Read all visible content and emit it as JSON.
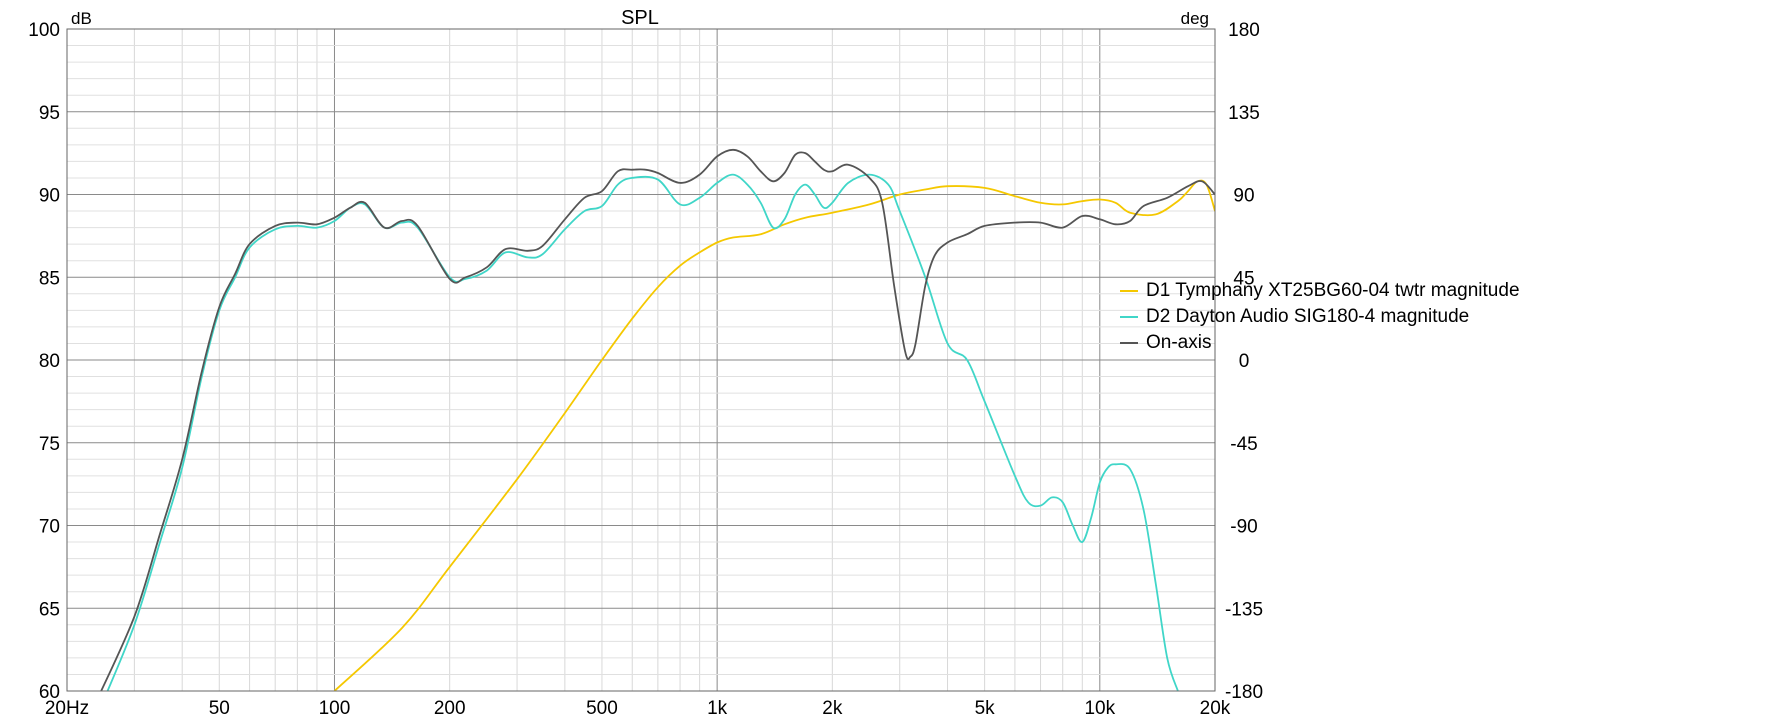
{
  "chart_data": {
    "type": "line",
    "title": "SPL",
    "left_unit": "dB",
    "right_unit": "deg",
    "x_scale": "log",
    "xlim": [
      20,
      20000
    ],
    "ylim": [
      60,
      100
    ],
    "y2lim": [
      -180,
      180
    ],
    "grid": true,
    "legend_position": "right",
    "x_ticks": [
      {
        "value": 20,
        "label": "20Hz"
      },
      {
        "value": 50,
        "label": "50"
      },
      {
        "value": 100,
        "label": "100"
      },
      {
        "value": 200,
        "label": "200"
      },
      {
        "value": 500,
        "label": "500"
      },
      {
        "value": 1000,
        "label": "1k"
      },
      {
        "value": 2000,
        "label": "2k"
      },
      {
        "value": 5000,
        "label": "5k"
      },
      {
        "value": 10000,
        "label": "10k"
      },
      {
        "value": 20000,
        "label": "20k"
      }
    ],
    "y_ticks": [
      100,
      95,
      90,
      85,
      80,
      75,
      70,
      65,
      60
    ],
    "y2_ticks": [
      180,
      135,
      90,
      45,
      0,
      -45,
      -90,
      -135,
      -180
    ],
    "series": [
      {
        "name": "D1 Tymphany XT25BG60-04 twtr magnitude",
        "color": "#f5c800",
        "points": [
          [
            100,
            60.0
          ],
          [
            150,
            63.8
          ],
          [
            200,
            67.5
          ],
          [
            300,
            72.8
          ],
          [
            400,
            76.8
          ],
          [
            500,
            80.0
          ],
          [
            600,
            82.5
          ],
          [
            700,
            84.4
          ],
          [
            800,
            85.7
          ],
          [
            900,
            86.5
          ],
          [
            1000,
            87.1
          ],
          [
            1100,
            87.4
          ],
          [
            1300,
            87.6
          ],
          [
            1500,
            88.2
          ],
          [
            1700,
            88.6
          ],
          [
            2000,
            88.9
          ],
          [
            2500,
            89.4
          ],
          [
            3000,
            90.0
          ],
          [
            3500,
            90.3
          ],
          [
            4000,
            90.5
          ],
          [
            5000,
            90.4
          ],
          [
            6000,
            89.9
          ],
          [
            7000,
            89.5
          ],
          [
            8000,
            89.4
          ],
          [
            9000,
            89.6
          ],
          [
            10000,
            89.7
          ],
          [
            11000,
            89.5
          ],
          [
            12000,
            88.9
          ],
          [
            14000,
            88.8
          ],
          [
            16000,
            89.6
          ],
          [
            17000,
            90.2
          ],
          [
            18000,
            90.8
          ],
          [
            19000,
            90.6
          ],
          [
            20000,
            89.0
          ]
        ]
      },
      {
        "name": "D2 Dayton Audio SIG180-4 magnitude",
        "color": "#40d6c8",
        "points": [
          [
            25,
            59.5
          ],
          [
            30,
            64.0
          ],
          [
            35,
            69.0
          ],
          [
            40,
            73.5
          ],
          [
            45,
            79.0
          ],
          [
            50,
            83.0
          ],
          [
            55,
            85.0
          ],
          [
            60,
            86.8
          ],
          [
            70,
            87.9
          ],
          [
            80,
            88.1
          ],
          [
            90,
            88.0
          ],
          [
            100,
            88.4
          ],
          [
            110,
            89.2
          ],
          [
            120,
            89.4
          ],
          [
            135,
            88.0
          ],
          [
            150,
            88.3
          ],
          [
            165,
            88.0
          ],
          [
            200,
            85.0
          ],
          [
            220,
            84.9
          ],
          [
            250,
            85.4
          ],
          [
            280,
            86.5
          ],
          [
            320,
            86.2
          ],
          [
            350,
            86.4
          ],
          [
            400,
            87.9
          ],
          [
            450,
            89.0
          ],
          [
            500,
            89.3
          ],
          [
            550,
            90.6
          ],
          [
            600,
            91.0
          ],
          [
            700,
            90.9
          ],
          [
            800,
            89.4
          ],
          [
            900,
            89.8
          ],
          [
            1000,
            90.7
          ],
          [
            1100,
            91.2
          ],
          [
            1200,
            90.6
          ],
          [
            1300,
            89.5
          ],
          [
            1400,
            88.0
          ],
          [
            1500,
            88.5
          ],
          [
            1600,
            90.0
          ],
          [
            1700,
            90.6
          ],
          [
            1800,
            90.0
          ],
          [
            1900,
            89.2
          ],
          [
            2000,
            89.5
          ],
          [
            2200,
            90.7
          ],
          [
            2500,
            91.2
          ],
          [
            2800,
            90.6
          ],
          [
            3000,
            89.0
          ],
          [
            3500,
            85.0
          ],
          [
            4000,
            81.0
          ],
          [
            4500,
            80.0
          ],
          [
            5000,
            77.5
          ],
          [
            6000,
            73.0
          ],
          [
            6500,
            71.4
          ],
          [
            7000,
            71.2
          ],
          [
            7500,
            71.7
          ],
          [
            8000,
            71.4
          ],
          [
            8500,
            70.0
          ],
          [
            9000,
            69.0
          ],
          [
            9500,
            70.5
          ],
          [
            10000,
            72.6
          ],
          [
            10500,
            73.5
          ],
          [
            11000,
            73.7
          ],
          [
            12000,
            73.4
          ],
          [
            13000,
            71.0
          ],
          [
            14000,
            66.5
          ],
          [
            15000,
            62.0
          ],
          [
            16000,
            60.0
          ]
        ]
      },
      {
        "name": "On-axis",
        "color": "#555555",
        "points": [
          [
            24,
            59.5
          ],
          [
            30,
            64.5
          ],
          [
            35,
            69.5
          ],
          [
            40,
            74.0
          ],
          [
            45,
            79.3
          ],
          [
            50,
            83.2
          ],
          [
            55,
            85.2
          ],
          [
            60,
            87.0
          ],
          [
            70,
            88.1
          ],
          [
            80,
            88.3
          ],
          [
            90,
            88.2
          ],
          [
            100,
            88.6
          ],
          [
            110,
            89.2
          ],
          [
            120,
            89.5
          ],
          [
            135,
            88.0
          ],
          [
            150,
            88.4
          ],
          [
            165,
            88.1
          ],
          [
            200,
            84.9
          ],
          [
            220,
            85.0
          ],
          [
            250,
            85.6
          ],
          [
            280,
            86.7
          ],
          [
            320,
            86.6
          ],
          [
            350,
            86.9
          ],
          [
            400,
            88.5
          ],
          [
            450,
            89.8
          ],
          [
            500,
            90.2
          ],
          [
            550,
            91.4
          ],
          [
            600,
            91.5
          ],
          [
            650,
            91.5
          ],
          [
            700,
            91.3
          ],
          [
            800,
            90.7
          ],
          [
            900,
            91.2
          ],
          [
            1000,
            92.3
          ],
          [
            1100,
            92.7
          ],
          [
            1200,
            92.3
          ],
          [
            1300,
            91.4
          ],
          [
            1400,
            90.8
          ],
          [
            1500,
            91.3
          ],
          [
            1600,
            92.4
          ],
          [
            1700,
            92.5
          ],
          [
            1800,
            92.0
          ],
          [
            1900,
            91.5
          ],
          [
            2000,
            91.4
          ],
          [
            2200,
            91.8
          ],
          [
            2500,
            91.0
          ],
          [
            2700,
            89.5
          ],
          [
            2900,
            84.5
          ],
          [
            3100,
            80.5
          ],
          [
            3200,
            80.2
          ],
          [
            3300,
            81.0
          ],
          [
            3500,
            84.5
          ],
          [
            3700,
            86.3
          ],
          [
            4000,
            87.1
          ],
          [
            4500,
            87.6
          ],
          [
            5000,
            88.1
          ],
          [
            6000,
            88.3
          ],
          [
            7000,
            88.3
          ],
          [
            8000,
            88.0
          ],
          [
            9000,
            88.7
          ],
          [
            10000,
            88.5
          ],
          [
            11000,
            88.2
          ],
          [
            12000,
            88.4
          ],
          [
            13000,
            89.3
          ],
          [
            15000,
            89.8
          ],
          [
            17000,
            90.5
          ],
          [
            18500,
            90.8
          ],
          [
            20000,
            90.0
          ]
        ]
      }
    ]
  }
}
